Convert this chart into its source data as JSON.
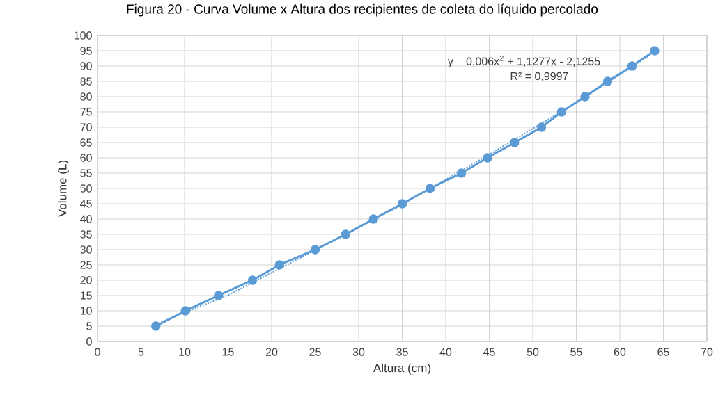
{
  "chart_data": {
    "type": "line",
    "title": "Figura 20 - Curva Volume x Altura dos recipientes de coleta do líquido percolado",
    "xlabel": "Altura (cm)",
    "ylabel": "Volume (L)",
    "x": [
      6.7,
      10.1,
      13.9,
      17.8,
      20.9,
      25,
      28.5,
      31.7,
      35,
      38.2,
      41.8,
      44.8,
      47.9,
      51,
      53.3,
      56,
      58.6,
      61.4,
      64
    ],
    "series": [
      {
        "color": "#5b9bd5",
        "marker": "circle",
        "line_style": "solid",
        "values": [
          5,
          10,
          15,
          20,
          25,
          30,
          35,
          40,
          45,
          50,
          55,
          60,
          65,
          70,
          75,
          80,
          85,
          90,
          95
        ]
      },
      {
        "color": "#5b9bd5",
        "marker": "none",
        "line_style": "dotted",
        "x": [
          6.7,
          15,
          25,
          35,
          45,
          55,
          64
        ],
        "values": [
          5.7,
          15.1,
          29.8,
          44.7,
          61.1,
          78.0,
          94.6
        ]
      }
    ],
    "xlim": [
      0,
      70
    ],
    "ylim": [
      0,
      100
    ],
    "xticks": [
      0,
      5,
      10,
      15,
      20,
      25,
      30,
      35,
      40,
      45,
      50,
      55,
      60,
      65,
      70
    ],
    "yticks": [
      0,
      5,
      10,
      15,
      20,
      25,
      30,
      35,
      40,
      45,
      50,
      55,
      60,
      65,
      70,
      75,
      80,
      85,
      90,
      95,
      100
    ],
    "grid": true,
    "annotations": [
      "y = 0,006x$^{2}$ + 1,1277x - 2,1255",
      "R² = 0,9997"
    ]
  }
}
